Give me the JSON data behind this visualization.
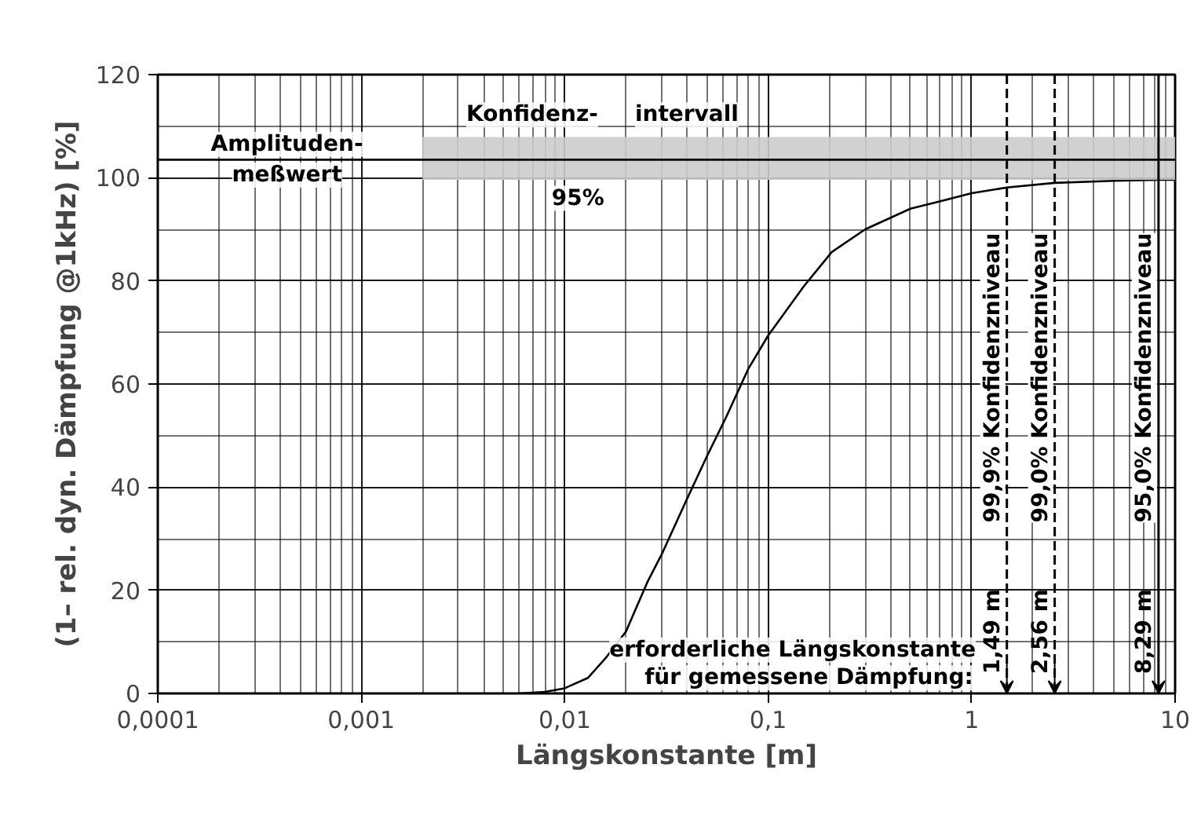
{
  "chart_data": {
    "type": "line",
    "xlabel": "Längskonstante [m]",
    "ylabel": "(1– rel. dyn. Dämpfung @1kHz) [%]",
    "log": "x",
    "xlim": [
      0.0001,
      10
    ],
    "ylim": [
      0,
      120
    ],
    "xticks": [
      {
        "value": 0.0001,
        "label": "0,0001"
      },
      {
        "value": 0.001,
        "label": "0,001"
      },
      {
        "value": 0.01,
        "label": "0,01"
      },
      {
        "value": 0.1,
        "label": "0,1"
      },
      1,
      10
    ],
    "yticks": [
      0,
      20,
      40,
      60,
      80,
      100,
      120
    ],
    "grid": true,
    "line_style": "solid",
    "series": [
      {
        "color": "#000000",
        "x": [
          0.006,
          0.008,
          0.01,
          0.013,
          0.016,
          0.02,
          0.0255,
          0.03,
          0.04,
          0.05,
          0.0622,
          0.08,
          0.1,
          0.15,
          0.2056,
          0.3,
          0.5,
          0.8,
          1,
          1.49,
          2.56,
          5,
          8.29,
          10
        ],
        "values": [
          0,
          0.3,
          1,
          3,
          7,
          12,
          21.6,
          27,
          37.8,
          46,
          53.6,
          63,
          69.4,
          79,
          85.6,
          90,
          94,
          96,
          97,
          98.1,
          99,
          99.4,
          99.6,
          99.6
        ]
      },
      {
        "color": "#000000",
        "x": [
          0.0001,
          0.002,
          10
        ],
        "values": [
          103.5,
          103.5,
          103.5
        ],
        "lower": [
          null,
          99.6,
          99.6
        ],
        "upper": [
          null,
          107.9,
          107.9
        ]
      }
    ],
    "ref_lines": [
      {
        "axis": "x",
        "value": 1.49,
        "label": "99,9% Konfidenzniveau",
        "line_style": "dashed",
        "color": "#000000"
      },
      {
        "axis": "x",
        "value": 2.56,
        "label": "99,0% Konfidenzniveau",
        "line_style": "dashed",
        "color": "#000000"
      },
      {
        "axis": "x",
        "value": 8.29,
        "label": "95,0% Konfidenzniveau",
        "line_style": "solid",
        "color": "#000000"
      }
    ],
    "annotations": [
      "Amplituden-",
      "meßwert",
      "Konfidenz-",
      "intervall",
      "95%",
      "erforderliche Längskonstante",
      "für gemessene Dämpfung:",
      {
        "text": "1,49 m",
        "x": 1.49,
        "y": 12
      },
      {
        "text": "2,56 m",
        "x": 2.56,
        "y": 12
      },
      {
        "text": "8,29 m",
        "x": 8.29,
        "y": 12
      }
    ]
  }
}
